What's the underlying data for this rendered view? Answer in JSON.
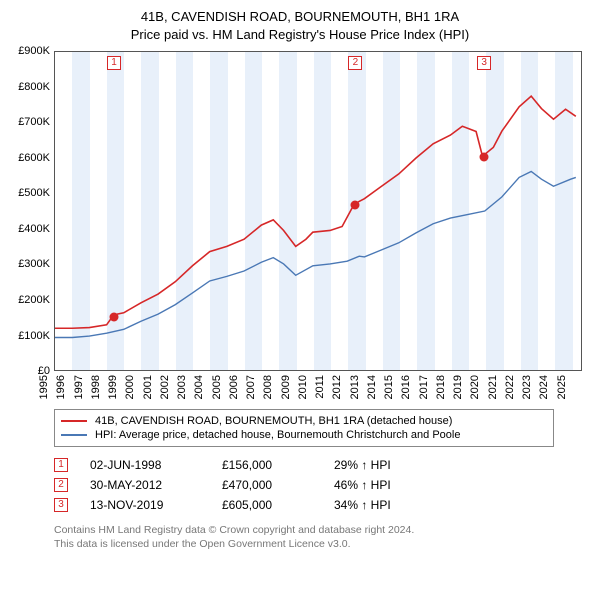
{
  "title_line1": "41B, CAVENDISH ROAD, BOURNEMOUTH, BH1 1RA",
  "title_line2": "Price paid vs. HM Land Registry's House Price Index (HPI)",
  "chart": {
    "type": "line",
    "background_color": "#ffffff",
    "band_color": "#e8f0fa",
    "border_color": "#555555",
    "xlim": [
      1995,
      2025.6
    ],
    "ylim": [
      0,
      900000
    ],
    "ytick_step": 100000,
    "yticks": [
      "£0",
      "£100K",
      "£200K",
      "£300K",
      "£400K",
      "£500K",
      "£600K",
      "£700K",
      "£800K",
      "£900K"
    ],
    "xticks": [
      1995,
      1996,
      1997,
      1998,
      1999,
      2000,
      2001,
      2002,
      2003,
      2004,
      2005,
      2006,
      2007,
      2008,
      2009,
      2010,
      2011,
      2012,
      2013,
      2014,
      2015,
      2016,
      2017,
      2018,
      2019,
      2020,
      2021,
      2022,
      2023,
      2024,
      2025
    ],
    "series": [
      {
        "name": "property",
        "label": "41B, CAVENDISH ROAD, BOURNEMOUTH, BH1 1RA (detached house)",
        "color": "#d62728",
        "line_width": 1.6,
        "data": [
          [
            1995,
            118000
          ],
          [
            1996,
            118000
          ],
          [
            1997,
            120000
          ],
          [
            1998,
            128000
          ],
          [
            1998.42,
            156000
          ],
          [
            1999,
            162000
          ],
          [
            2000,
            190000
          ],
          [
            2001,
            215000
          ],
          [
            2002,
            250000
          ],
          [
            2003,
            295000
          ],
          [
            2004,
            335000
          ],
          [
            2005,
            350000
          ],
          [
            2006,
            370000
          ],
          [
            2007,
            410000
          ],
          [
            2007.7,
            425000
          ],
          [
            2008.3,
            395000
          ],
          [
            2009,
            350000
          ],
          [
            2009.6,
            370000
          ],
          [
            2010,
            390000
          ],
          [
            2011,
            395000
          ],
          [
            2011.7,
            406000
          ],
          [
            2012.41,
            470000
          ],
          [
            2013,
            485000
          ],
          [
            2014,
            520000
          ],
          [
            2015,
            555000
          ],
          [
            2016,
            600000
          ],
          [
            2017,
            640000
          ],
          [
            2018,
            665000
          ],
          [
            2018.7,
            690000
          ],
          [
            2019.5,
            675000
          ],
          [
            2019.87,
            605000
          ],
          [
            2020.5,
            630000
          ],
          [
            2021,
            676000
          ],
          [
            2022,
            745000
          ],
          [
            2022.7,
            775000
          ],
          [
            2023.3,
            740000
          ],
          [
            2024,
            710000
          ],
          [
            2024.7,
            738000
          ],
          [
            2025.3,
            718000
          ]
        ]
      },
      {
        "name": "hpi",
        "label": "HPI: Average price, detached house, Bournemouth Christchurch and Poole",
        "color": "#4a78b5",
        "line_width": 1.4,
        "data": [
          [
            1995,
            92000
          ],
          [
            1996,
            92000
          ],
          [
            1997,
            96000
          ],
          [
            1998,
            104000
          ],
          [
            1999,
            115000
          ],
          [
            2000,
            138000
          ],
          [
            2001,
            158000
          ],
          [
            2002,
            185000
          ],
          [
            2003,
            218000
          ],
          [
            2004,
            252000
          ],
          [
            2005,
            265000
          ],
          [
            2006,
            280000
          ],
          [
            2007,
            305000
          ],
          [
            2007.7,
            318000
          ],
          [
            2008.3,
            300000
          ],
          [
            2009,
            268000
          ],
          [
            2010,
            295000
          ],
          [
            2011,
            300000
          ],
          [
            2012,
            308000
          ],
          [
            2012.7,
            322000
          ],
          [
            2013,
            320000
          ],
          [
            2014,
            340000
          ],
          [
            2015,
            360000
          ],
          [
            2016,
            388000
          ],
          [
            2017,
            414000
          ],
          [
            2018,
            430000
          ],
          [
            2019,
            440000
          ],
          [
            2020,
            450000
          ],
          [
            2021,
            490000
          ],
          [
            2022,
            545000
          ],
          [
            2022.7,
            562000
          ],
          [
            2023.3,
            540000
          ],
          [
            2024,
            520000
          ],
          [
            2025,
            540000
          ],
          [
            2025.3,
            545000
          ]
        ]
      }
    ],
    "sale_markers": [
      {
        "n": "1",
        "x": 1998.42,
        "y": 156000,
        "color": "#d62728"
      },
      {
        "n": "2",
        "x": 2012.41,
        "y": 470000,
        "color": "#d62728"
      },
      {
        "n": "3",
        "x": 2019.87,
        "y": 605000,
        "color": "#d62728"
      }
    ]
  },
  "legend": {
    "rows": [
      {
        "color": "#d62728",
        "label": "41B, CAVENDISH ROAD, BOURNEMOUTH, BH1 1RA (detached house)"
      },
      {
        "color": "#4a78b5",
        "label": "HPI: Average price, detached house, Bournemouth Christchurch and Poole"
      }
    ]
  },
  "sales": [
    {
      "n": "1",
      "date": "02-JUN-1998",
      "price": "£156,000",
      "pct": "29% ↑ HPI"
    },
    {
      "n": "2",
      "date": "30-MAY-2012",
      "price": "£470,000",
      "pct": "46% ↑ HPI"
    },
    {
      "n": "3",
      "date": "13-NOV-2019",
      "price": "£605,000",
      "pct": "34% ↑ HPI"
    }
  ],
  "footer_line1": "Contains HM Land Registry data © Crown copyright and database right 2024.",
  "footer_line2": "This data is licensed under the Open Government Licence v3.0."
}
